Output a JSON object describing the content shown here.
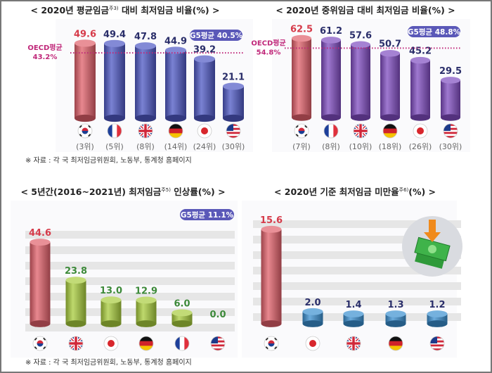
{
  "colors": {
    "korea_bar": "#e0606a",
    "blue_bar": "#4e58c4",
    "purple_bar": "#7f4cc0",
    "green_bar": "#a8cc3c",
    "cyan_bar": "#3a8fd0",
    "oecd_line": "#c0287a",
    "badge": "#5a58b8"
  },
  "source_note": "※ 자료 : 각 국 최저임금위원회, 노동부, 통계청 홈페이지",
  "chart_data": [
    {
      "type": "bar",
      "title": "< 2020년 평균임금",
      "title_sup": "주3)",
      "title_suffix": " 대비 최저임금 비율(%) >",
      "categories": [
        "korea",
        "france",
        "uk",
        "germany",
        "japan",
        "usa"
      ],
      "values": [
        49.6,
        49.4,
        47.8,
        44.9,
        39.2,
        21.1
      ],
      "value_labels": [
        "49.6",
        "49.4",
        "47.8",
        "44.9",
        "39.2",
        "21.1"
      ],
      "ranks": [
        "(3위)",
        "(5위)",
        "(8위)",
        "(14위)",
        "(24위)",
        "(30위)"
      ],
      "reference_line": {
        "label1": "OECD평균",
        "label2": "43.2%",
        "value": 43.2
      },
      "badge": "G5평균 40.5%"
    },
    {
      "type": "bar",
      "title": "< 2020년 중위임금 대비 최저임금 비율(%) >",
      "categories": [
        "korea",
        "france",
        "uk",
        "germany",
        "japan",
        "usa"
      ],
      "values": [
        62.5,
        61.2,
        57.6,
        50.7,
        45.2,
        29.5
      ],
      "value_labels": [
        "62.5",
        "61.2",
        "57.6",
        "50.7",
        "45.2",
        "29.5"
      ],
      "ranks": [
        "(7위)",
        "(8위)",
        "(10위)",
        "(18위)",
        "(26위)",
        "(30위)"
      ],
      "reference_line": {
        "label1": "OECD평균",
        "label2": "54.8%",
        "value": 54.8
      },
      "badge": "G5평균 48.8%"
    },
    {
      "type": "bar",
      "title": "< 5년간(2016~2021년) 최저임금",
      "title_sup": "주5)",
      "title_suffix": " 인상률(%) >",
      "categories": [
        "korea",
        "uk",
        "japan",
        "germany",
        "france",
        "usa"
      ],
      "values": [
        44.6,
        23.8,
        13.0,
        12.9,
        6.0,
        0.0
      ],
      "value_labels": [
        "44.6",
        "23.8",
        "13.0",
        "12.9",
        "6.0",
        "0.0"
      ],
      "badge": "G5평균 11.1%"
    },
    {
      "type": "bar",
      "title": "< 2020년 기준 최저임금 미만율",
      "title_sup": "주6)",
      "title_suffix": "(%) >",
      "categories": [
        "korea",
        "japan",
        "uk",
        "germany",
        "usa"
      ],
      "values": [
        15.6,
        2.0,
        1.4,
        1.3,
        1.2
      ],
      "value_labels": [
        "15.6",
        "2.0",
        "1.4",
        "1.3",
        "1.2"
      ],
      "icon": "money-down-icon"
    }
  ]
}
